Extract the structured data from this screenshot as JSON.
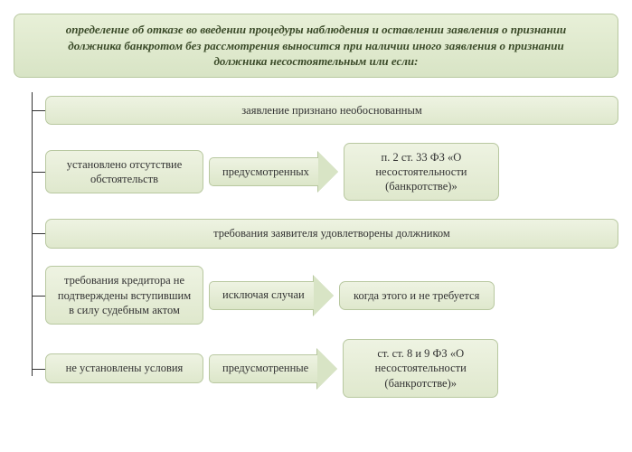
{
  "header": {
    "text": "определение об отказе во введении процедуры наблюдения и оставлении заявления о признании должника банкротом без рассмотрения выносится при наличии иного заявления о признании должника несостоятельным или если:"
  },
  "rows": [
    {
      "type": "full",
      "label": "заявление признано необоснованным"
    },
    {
      "type": "flow",
      "left": "установлено отсутствие обстоятельств",
      "arrow_label": "предусмотренных",
      "right": "п. 2 ст. 33 ФЗ «О несостоятельности (банкротстве)»"
    },
    {
      "type": "full",
      "label": "требования заявителя удовлетворены должником"
    },
    {
      "type": "flow",
      "left": "требования кредитора не подтверждены вступившим в силу судебным актом",
      "arrow_label": "исключая случаи",
      "right": "когда этого и не требуется"
    },
    {
      "type": "flow",
      "left": "не установлены условия",
      "arrow_label": "предусмотренные",
      "right": "ст. ст. 8 и 9 ФЗ «О несостоятельности (банкротстве)»"
    }
  ],
  "style": {
    "box_bg_top": "#eef3e2",
    "box_bg_bottom": "#dce6c9",
    "box_border": "#b8c8a0",
    "text_color": "#333333",
    "header_text_color": "#3a4a28",
    "font_family": "Times New Roman, serif",
    "font_size_body": 12.5,
    "font_size_header": 13,
    "border_radius": 7,
    "arrow_head_color": "#d8e4c5",
    "line_color": "#333333"
  }
}
